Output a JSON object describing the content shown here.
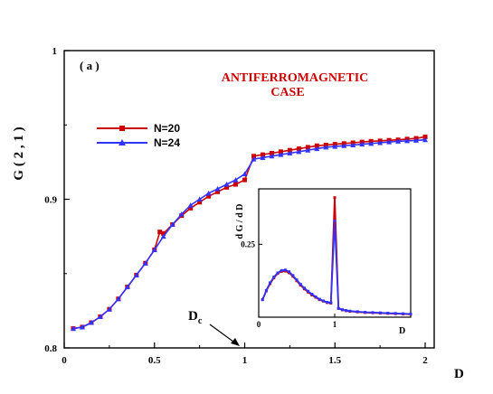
{
  "chart_data": [
    {
      "type": "line",
      "panel_label": "( a )",
      "annotation": [
        "ANTIFERROMAGNETIC",
        "CASE"
      ],
      "xlabel": "D",
      "ylabel": "G ( 2 , 1 )",
      "xlim": [
        0,
        2.05
      ],
      "ylim": [
        0.8,
        1.0
      ],
      "xticks": [
        "0",
        "0.5",
        "1",
        "1.5",
        "2"
      ],
      "yticks": [
        "0.8",
        "0.9",
        "1"
      ],
      "grid": false,
      "legend_position": "upper-left",
      "critical_marker": {
        "label": "D",
        "subscript": "c",
        "x": 1.0
      },
      "colors": {
        "N=20": "#cc0000",
        "N=24": "#3333ff"
      },
      "series": [
        {
          "name": "N=20",
          "marker": "square",
          "x": [
            0.05,
            0.1,
            0.15,
            0.2,
            0.25,
            0.3,
            0.35,
            0.4,
            0.45,
            0.5,
            0.53,
            0.55,
            0.6,
            0.65,
            0.7,
            0.75,
            0.8,
            0.85,
            0.9,
            0.95,
            1.0,
            1.05,
            1.1,
            1.15,
            1.2,
            1.25,
            1.3,
            1.35,
            1.4,
            1.45,
            1.5,
            1.55,
            1.6,
            1.65,
            1.7,
            1.75,
            1.8,
            1.85,
            1.9,
            1.95,
            2.0
          ],
          "y": [
            0.813,
            0.814,
            0.817,
            0.821,
            0.826,
            0.833,
            0.841,
            0.849,
            0.857,
            0.866,
            0.878,
            0.877,
            0.883,
            0.889,
            0.894,
            0.898,
            0.902,
            0.905,
            0.908,
            0.91,
            0.913,
            0.929,
            0.93,
            0.931,
            0.932,
            0.933,
            0.934,
            0.935,
            0.936,
            0.9365,
            0.937,
            0.9375,
            0.938,
            0.9385,
            0.939,
            0.9393,
            0.9397,
            0.94,
            0.9405,
            0.941,
            0.942
          ]
        },
        {
          "name": "N=24",
          "marker": "triangle",
          "x": [
            0.05,
            0.1,
            0.15,
            0.2,
            0.25,
            0.3,
            0.35,
            0.4,
            0.45,
            0.5,
            0.55,
            0.6,
            0.65,
            0.7,
            0.75,
            0.8,
            0.85,
            0.9,
            0.95,
            1.0,
            1.05,
            1.1,
            1.15,
            1.2,
            1.25,
            1.3,
            1.35,
            1.4,
            1.45,
            1.5,
            1.55,
            1.6,
            1.65,
            1.7,
            1.75,
            1.8,
            1.85,
            1.9,
            1.95,
            2.0
          ],
          "y": [
            0.813,
            0.814,
            0.817,
            0.821,
            0.826,
            0.833,
            0.841,
            0.849,
            0.857,
            0.866,
            0.875,
            0.883,
            0.89,
            0.896,
            0.9,
            0.904,
            0.907,
            0.91,
            0.913,
            0.917,
            0.927,
            0.928,
            0.929,
            0.93,
            0.931,
            0.932,
            0.933,
            0.934,
            0.935,
            0.9355,
            0.936,
            0.9365,
            0.937,
            0.9375,
            0.938,
            0.9385,
            0.939,
            0.9393,
            0.9396,
            0.94
          ]
        }
      ]
    },
    {
      "type": "line",
      "role": "inset",
      "xlabel": "D",
      "ylabel": "d G / d D",
      "xlim": [
        0,
        2
      ],
      "ylim": [
        0,
        0.44
      ],
      "xticks": [
        "0",
        "1"
      ],
      "yticks": [
        "0.25"
      ],
      "series": [
        {
          "name": "N=20",
          "x": [
            0.05,
            0.1,
            0.15,
            0.2,
            0.25,
            0.3,
            0.35,
            0.4,
            0.45,
            0.5,
            0.55,
            0.6,
            0.65,
            0.7,
            0.75,
            0.8,
            0.85,
            0.9,
            0.95,
            1.0,
            1.05,
            1.1,
            1.15,
            1.2,
            1.3,
            1.4,
            1.5,
            1.6,
            1.7,
            1.8,
            1.9,
            2.0
          ],
          "y": [
            0.06,
            0.09,
            0.115,
            0.135,
            0.15,
            0.157,
            0.158,
            0.152,
            0.14,
            0.125,
            0.11,
            0.097,
            0.086,
            0.076,
            0.068,
            0.06,
            0.055,
            0.05,
            0.048,
            0.41,
            0.03,
            0.025,
            0.022,
            0.02,
            0.018,
            0.016,
            0.015,
            0.014,
            0.013,
            0.012,
            0.011,
            0.01
          ]
        },
        {
          "name": "N=24",
          "x": [
            0.05,
            0.1,
            0.15,
            0.2,
            0.25,
            0.3,
            0.35,
            0.4,
            0.45,
            0.5,
            0.55,
            0.6,
            0.65,
            0.7,
            0.75,
            0.8,
            0.85,
            0.9,
            0.95,
            1.0,
            1.05,
            1.1,
            1.15,
            1.2,
            1.3,
            1.4,
            1.5,
            1.6,
            1.7,
            1.8,
            1.9,
            2.0
          ],
          "y": [
            0.06,
            0.092,
            0.118,
            0.138,
            0.152,
            0.16,
            0.162,
            0.156,
            0.143,
            0.128,
            0.113,
            0.1,
            0.089,
            0.079,
            0.07,
            0.062,
            0.056,
            0.051,
            0.05,
            0.33,
            0.03,
            0.026,
            0.023,
            0.021,
            0.019,
            0.017,
            0.016,
            0.015,
            0.014,
            0.013,
            0.012,
            0.011
          ]
        }
      ]
    }
  ]
}
